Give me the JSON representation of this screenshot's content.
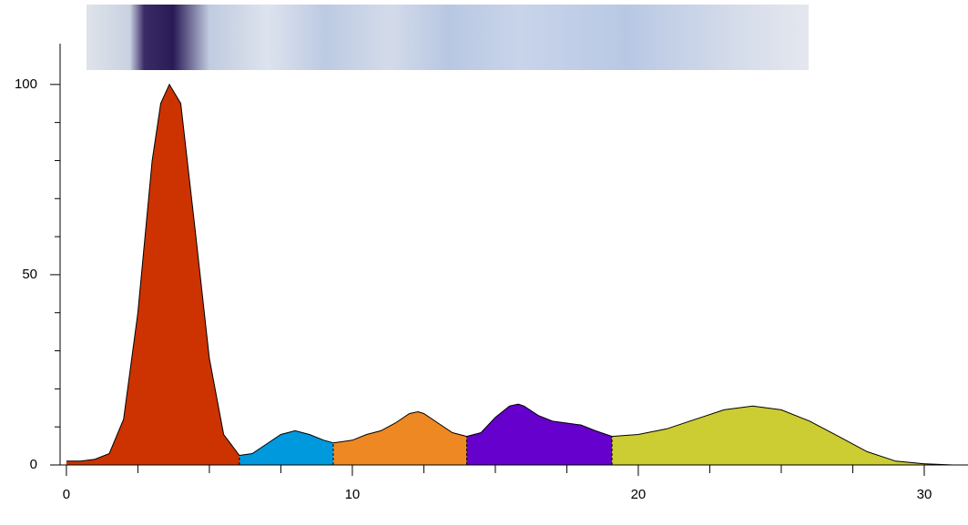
{
  "chart_data": {
    "type": "segmented-area",
    "xlim": [
      -0.22,
      31.53
    ],
    "ylim": [
      0,
      110
    ],
    "xticks": [
      0,
      10,
      20,
      30
    ],
    "yticks": [
      0,
      50,
      100
    ],
    "xminor": [
      2.5,
      5,
      7.5,
      12.5,
      15,
      17.5,
      22.5,
      25,
      27.5
    ],
    "yminor": [
      10,
      20,
      30,
      40,
      60,
      70,
      80,
      90
    ],
    "baseline_dashed": true,
    "segments": [
      {
        "color": "#cc3300",
        "x": [
          0,
          0.5,
          1,
          1.5,
          2,
          2.5,
          3,
          3.3,
          3.6,
          4,
          4.5,
          5,
          5.5,
          6.05
        ],
        "values": [
          1,
          1,
          1.5,
          3,
          12,
          40,
          80,
          95,
          100,
          95,
          62,
          28,
          8,
          2.5
        ]
      },
      {
        "color": "#0099dd",
        "x": [
          6.05,
          6.5,
          7,
          7.5,
          8,
          8.5,
          9,
          9.33
        ],
        "values": [
          2.5,
          3,
          5.5,
          8,
          9,
          8,
          6.5,
          5.8
        ]
      },
      {
        "color": "#ee8822",
        "x": [
          9.33,
          10,
          10.5,
          11,
          11.5,
          12,
          12.3,
          12.5,
          13,
          13.5,
          14
        ],
        "values": [
          5.8,
          6.5,
          8,
          9,
          11,
          13.5,
          14,
          13.5,
          11,
          8.5,
          7.5
        ]
      },
      {
        "color": "#6600cc",
        "x": [
          14,
          14.5,
          15,
          15.5,
          15.8,
          16,
          16.5,
          17,
          17.5,
          18,
          18.5,
          19.08
        ],
        "values": [
          7.5,
          8.5,
          12.5,
          15.5,
          16,
          15.5,
          13,
          11.5,
          11,
          10.5,
          9,
          7.5
        ]
      },
      {
        "color": "#cccc33",
        "x": [
          19.08,
          20,
          21,
          22,
          23,
          24,
          25,
          26,
          27,
          28,
          29,
          30,
          31
        ],
        "values": [
          7.5,
          8,
          9.5,
          12,
          14.5,
          15.5,
          14.5,
          11.5,
          7.5,
          3.5,
          1,
          0.3,
          0
        ]
      }
    ]
  }
}
